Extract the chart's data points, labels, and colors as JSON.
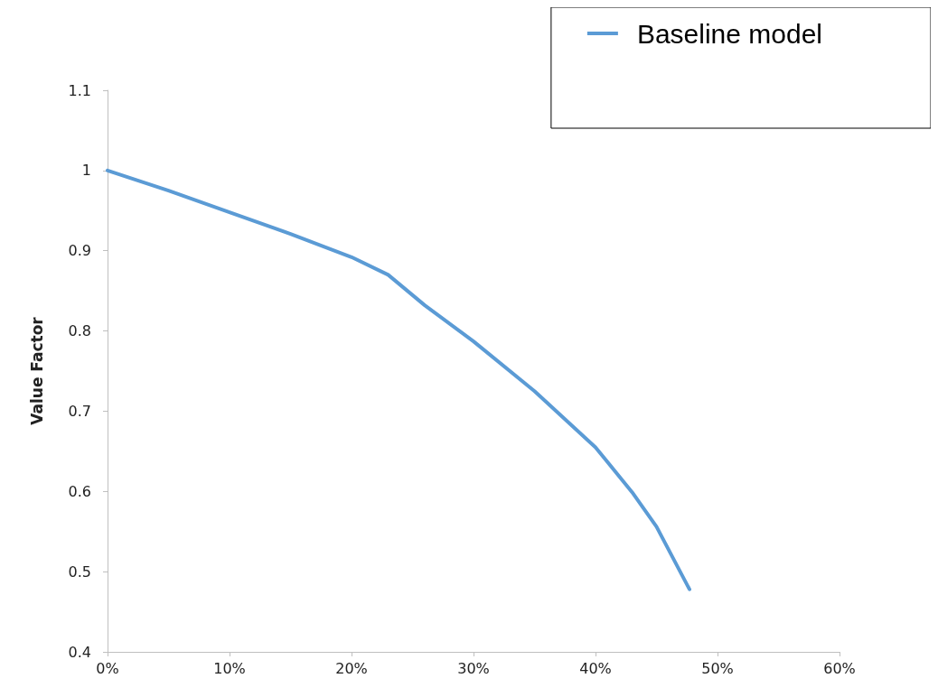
{
  "chart_data": {
    "type": "line",
    "ylabel": "Value Factor",
    "x": [
      0,
      5,
      10,
      15,
      20,
      23,
      26,
      30,
      35,
      40,
      43,
      45,
      47.7
    ],
    "series": [
      {
        "name": "Baseline model",
        "color": "#5b9bd5",
        "values": [
          1.0,
          0.975,
          0.948,
          0.921,
          0.892,
          0.87,
          0.832,
          0.787,
          0.725,
          0.655,
          0.599,
          0.556,
          0.478
        ]
      }
    ],
    "xlim": [
      0,
      60
    ],
    "xticks": [
      {
        "value": 0,
        "label": "0%"
      },
      {
        "value": 10,
        "label": "10%"
      },
      {
        "value": 20,
        "label": "20%"
      },
      {
        "value": 30,
        "label": "30%"
      },
      {
        "value": 40,
        "label": "40%"
      },
      {
        "value": 50,
        "label": "50%"
      },
      {
        "value": 60,
        "label": "60%"
      }
    ],
    "ylim": [
      0.4,
      1.1
    ],
    "yticks": [
      0.4,
      0.5,
      0.6,
      0.7,
      0.8,
      0.9,
      1,
      1.1
    ],
    "legend": "top right",
    "marker": "none",
    "line_style": "solid"
  }
}
